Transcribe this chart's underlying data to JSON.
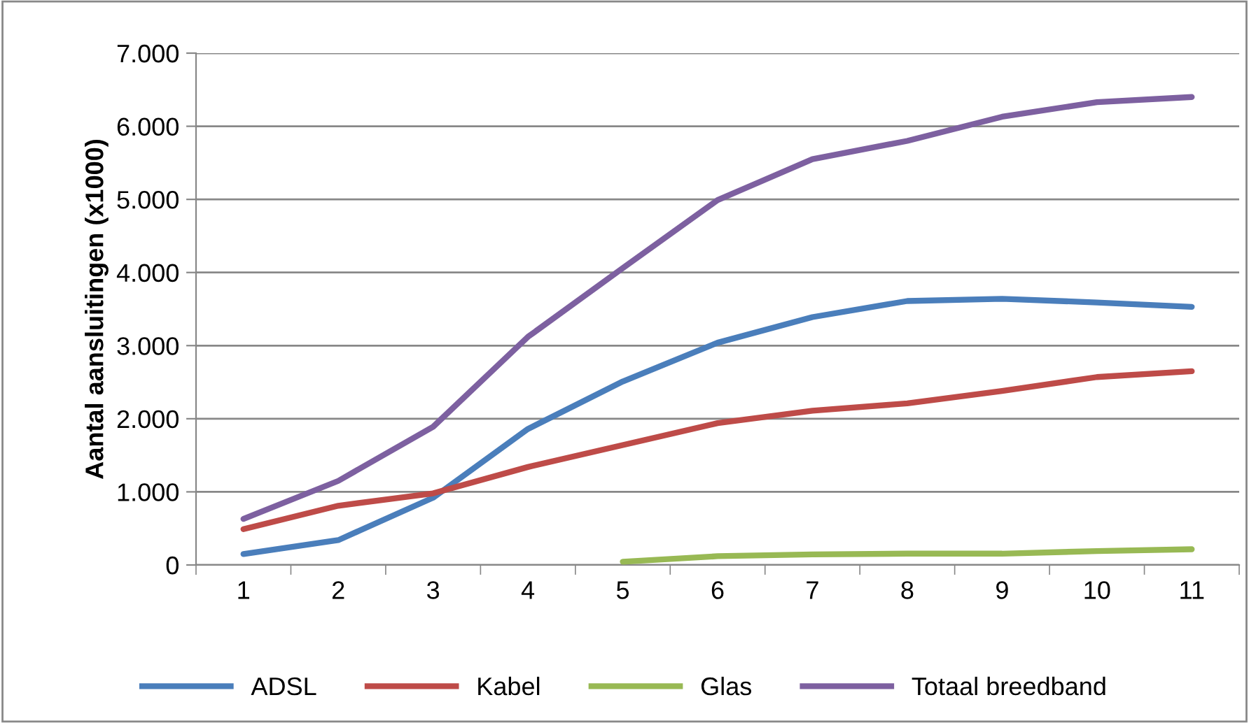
{
  "chart_data": {
    "type": "line",
    "ylabel": "Aantal aansluitingen (x1000)",
    "categories": [
      "1",
      "2",
      "3",
      "4",
      "5",
      "6",
      "7",
      "8",
      "9",
      "10",
      "11"
    ],
    "series": [
      {
        "name": "ADSL",
        "color": "#4a7ebb",
        "values": [
          150,
          340,
          920,
          1860,
          2510,
          3040,
          3390,
          3610,
          3640,
          3590,
          3530
        ]
      },
      {
        "name": "Kabel",
        "color": "#be4b48",
        "values": [
          490,
          810,
          980,
          1340,
          1640,
          1940,
          2110,
          2210,
          2380,
          2570,
          2650
        ]
      },
      {
        "name": "Glas",
        "color": "#98b954",
        "values": [
          null,
          null,
          null,
          null,
          45,
          120,
          145,
          155,
          155,
          190,
          215
        ]
      },
      {
        "name": "Totaal breedband",
        "color": "#7d60a0",
        "values": [
          630,
          1150,
          1890,
          3120,
          4060,
          4990,
          5550,
          5800,
          6130,
          6330,
          6400
        ]
      }
    ],
    "ylim": [
      0,
      7000
    ],
    "yticks": [
      {
        "value": 0,
        "label": "0"
      },
      {
        "value": 1000,
        "label": "1.000"
      },
      {
        "value": 2000,
        "label": "2.000"
      },
      {
        "value": 3000,
        "label": "3.000"
      },
      {
        "value": 4000,
        "label": "4.000"
      },
      {
        "value": 5000,
        "label": "5.000"
      },
      {
        "value": 6000,
        "label": "6.000"
      },
      {
        "value": 7000,
        "label": "7.000"
      }
    ],
    "grid": "y",
    "legend": "bottom",
    "marker": "none",
    "line_style": "solid"
  }
}
